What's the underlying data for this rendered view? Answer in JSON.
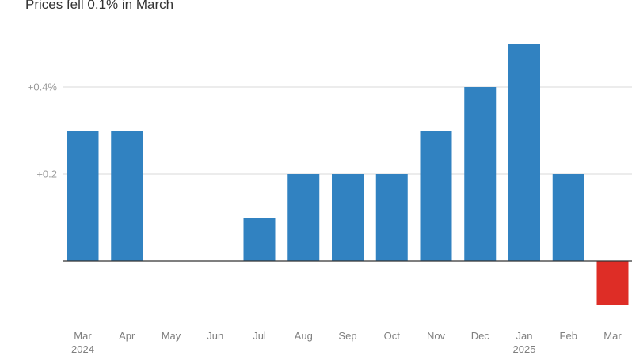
{
  "title": "Prices fell 0.1% in March",
  "chart_data": {
    "type": "bar",
    "title": "Prices fell 0.1% in March",
    "xlabel": "",
    "ylabel": "",
    "categories": [
      "Mar",
      "Apr",
      "May",
      "Jun",
      "Jul",
      "Aug",
      "Sep",
      "Oct",
      "Nov",
      "Dec",
      "Jan",
      "Feb",
      "Mar"
    ],
    "year_labels": [
      "2024",
      "",
      "",
      "",
      "",
      "",
      "",
      "",
      "",
      "",
      "2025",
      "",
      ""
    ],
    "values": [
      0.3,
      0.3,
      0.0,
      0.0,
      0.1,
      0.2,
      0.2,
      0.2,
      0.3,
      0.4,
      0.5,
      0.2,
      -0.1
    ],
    "ylim": [
      -0.1,
      0.5
    ],
    "y_ticks": [
      {
        "value": 0.4,
        "label": "+0.4%"
      },
      {
        "value": 0.2,
        "label": "+0.2"
      }
    ],
    "grid": true,
    "colors": {
      "positive": "#3182c1",
      "negative": "#de2d26",
      "grid": "#d9d9d9",
      "zero_line": "#333333"
    }
  }
}
